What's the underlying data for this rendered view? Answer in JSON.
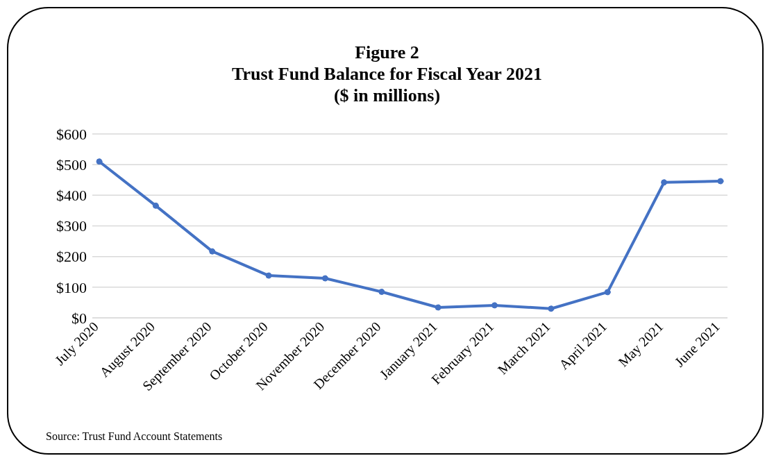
{
  "chart_data": {
    "type": "line",
    "title": "Figure 2\nTrust Fund Balance for Fiscal Year 2021\n($ in millions)",
    "categories": [
      "July 2020",
      "August 2020",
      "September 2020",
      "October 2020",
      "November 2020",
      "December 2020",
      "January 2021",
      "February 2021",
      "March 2021",
      "April 2021",
      "May 2021",
      "June 2021"
    ],
    "series": [
      {
        "color": "#4472c4",
        "values": [
          510,
          366,
          217,
          138,
          129,
          85,
          34,
          41,
          30,
          84,
          442,
          446
        ]
      }
    ],
    "ylim": [
      0,
      600
    ],
    "yticks": [
      {
        "value": 0,
        "label": "$0"
      },
      {
        "value": 100,
        "label": "$100"
      },
      {
        "value": 200,
        "label": "$200"
      },
      {
        "value": 300,
        "label": "$300"
      },
      {
        "value": 400,
        "label": "$400"
      },
      {
        "value": 500,
        "label": "$500"
      },
      {
        "value": 600,
        "label": "$600"
      }
    ],
    "grid": "y",
    "legend": false,
    "marker": "circle",
    "line_style": "solid",
    "annotations": [
      "Source: Trust Fund Account Statements"
    ]
  }
}
